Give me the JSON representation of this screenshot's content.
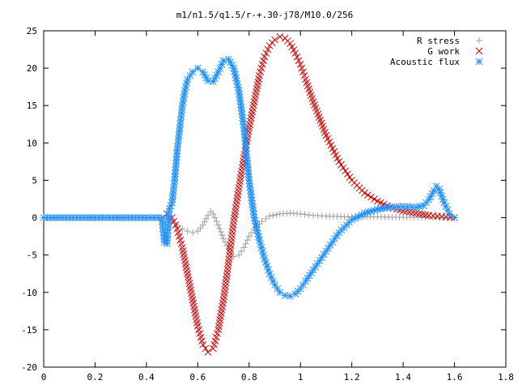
{
  "chart_data": {
    "type": "scatter",
    "title": "m1/n1.5/q1.5/r-+.30-j78/M10.0/256",
    "xlabel": "",
    "ylabel": "",
    "xlim": [
      0,
      1.8
    ],
    "ylim": [
      -20,
      25
    ],
    "x_ticks": [
      "0",
      "0.2",
      "0.4",
      "0.6",
      "0.8",
      "1",
      "1.2",
      "1.4",
      "1.6",
      "1.8"
    ],
    "y_ticks": [
      "-20",
      "-15",
      "-10",
      "-5",
      "0",
      "5",
      "10",
      "15",
      "20",
      "25"
    ],
    "grid": false,
    "legend_position": "top-right",
    "series": [
      {
        "name": "R stress",
        "marker": "plus",
        "color": "#a0a0a0",
        "points": [
          [
            0,
            0
          ],
          [
            0.46,
            0
          ],
          [
            0.48,
            0
          ],
          [
            0.5,
            -0.5
          ],
          [
            0.52,
            -1.0
          ],
          [
            0.54,
            -1.5
          ],
          [
            0.56,
            -1.8
          ],
          [
            0.58,
            -2.0
          ],
          [
            0.6,
            -1.8
          ],
          [
            0.62,
            -1.0
          ],
          [
            0.64,
            0.3
          ],
          [
            0.65,
            0.8
          ],
          [
            0.66,
            0.5
          ],
          [
            0.68,
            -1.0
          ],
          [
            0.7,
            -2.8
          ],
          [
            0.72,
            -4.2
          ],
          [
            0.74,
            -5.2
          ],
          [
            0.76,
            -5.0
          ],
          [
            0.78,
            -4.0
          ],
          [
            0.8,
            -2.5
          ],
          [
            0.82,
            -1.5
          ],
          [
            0.85,
            -0.5
          ],
          [
            0.88,
            0.2
          ],
          [
            0.92,
            0.5
          ],
          [
            0.96,
            0.6
          ],
          [
            1.0,
            0.5
          ],
          [
            1.05,
            0.3
          ],
          [
            1.1,
            0.2
          ],
          [
            1.2,
            0.1
          ],
          [
            1.3,
            0.1
          ],
          [
            1.4,
            0.05
          ],
          [
            1.5,
            0.05
          ],
          [
            1.6,
            0
          ]
        ]
      },
      {
        "name": "G work",
        "marker": "cross",
        "color": "#cc0000",
        "points": [
          [
            0.48,
            0.5
          ],
          [
            0.5,
            0
          ],
          [
            0.52,
            -1.5
          ],
          [
            0.54,
            -4
          ],
          [
            0.56,
            -7.5
          ],
          [
            0.58,
            -11
          ],
          [
            0.6,
            -14.5
          ],
          [
            0.62,
            -17
          ],
          [
            0.64,
            -18
          ],
          [
            0.66,
            -17.5
          ],
          [
            0.68,
            -15
          ],
          [
            0.7,
            -11
          ],
          [
            0.72,
            -6
          ],
          [
            0.74,
            -0.5
          ],
          [
            0.76,
            4
          ],
          [
            0.78,
            8
          ],
          [
            0.8,
            12
          ],
          [
            0.82,
            15.5
          ],
          [
            0.84,
            19
          ],
          [
            0.86,
            21.5
          ],
          [
            0.88,
            23
          ],
          [
            0.9,
            23.8
          ],
          [
            0.92,
            24.2
          ],
          [
            0.94,
            24
          ],
          [
            0.96,
            23.3
          ],
          [
            0.98,
            22
          ],
          [
            1.0,
            20.5
          ],
          [
            1.02,
            18.5
          ],
          [
            1.05,
            15.5
          ],
          [
            1.1,
            11
          ],
          [
            1.15,
            7.5
          ],
          [
            1.2,
            5
          ],
          [
            1.25,
            3.3
          ],
          [
            1.3,
            2.2
          ],
          [
            1.35,
            1.4
          ],
          [
            1.4,
            0.9
          ],
          [
            1.45,
            0.6
          ],
          [
            1.5,
            0.3
          ],
          [
            1.55,
            0.15
          ],
          [
            1.6,
            0
          ]
        ]
      },
      {
        "name": "Acoustic flux",
        "marker": "star",
        "color": "#1e90ff",
        "points": [
          [
            0,
            0
          ],
          [
            0.1,
            0
          ],
          [
            0.2,
            0
          ],
          [
            0.3,
            0
          ],
          [
            0.4,
            0
          ],
          [
            0.46,
            0
          ],
          [
            0.47,
            -3.3
          ],
          [
            0.48,
            -3.5
          ],
          [
            0.49,
            1.2
          ],
          [
            0.5,
            2
          ],
          [
            0.51,
            5
          ],
          [
            0.52,
            9
          ],
          [
            0.53,
            12
          ],
          [
            0.54,
            15
          ],
          [
            0.55,
            17
          ],
          [
            0.56,
            18.5
          ],
          [
            0.58,
            19.5
          ],
          [
            0.6,
            20
          ],
          [
            0.62,
            19.5
          ],
          [
            0.64,
            18.3
          ],
          [
            0.66,
            18.2
          ],
          [
            0.68,
            19.5
          ],
          [
            0.7,
            21
          ],
          [
            0.72,
            21.2
          ],
          [
            0.74,
            20
          ],
          [
            0.76,
            17
          ],
          [
            0.78,
            12
          ],
          [
            0.8,
            5
          ],
          [
            0.82,
            0
          ],
          [
            0.84,
            -3
          ],
          [
            0.86,
            -5.5
          ],
          [
            0.88,
            -7.5
          ],
          [
            0.9,
            -9
          ],
          [
            0.92,
            -10
          ],
          [
            0.94,
            -10.4
          ],
          [
            0.96,
            -10.5
          ],
          [
            0.98,
            -10.2
          ],
          [
            1.0,
            -9.5
          ],
          [
            1.02,
            -8.5
          ],
          [
            1.05,
            -7
          ],
          [
            1.1,
            -4.5
          ],
          [
            1.15,
            -2
          ],
          [
            1.2,
            -0.3
          ],
          [
            1.25,
            0.6
          ],
          [
            1.3,
            1.1
          ],
          [
            1.35,
            1.4
          ],
          [
            1.4,
            1.5
          ],
          [
            1.45,
            1.4
          ],
          [
            1.48,
            1.6
          ],
          [
            1.5,
            2.4
          ],
          [
            1.52,
            3.6
          ],
          [
            1.53,
            4.2
          ],
          [
            1.54,
            3.8
          ],
          [
            1.56,
            2
          ],
          [
            1.58,
            0.5
          ],
          [
            1.6,
            0
          ]
        ]
      }
    ]
  }
}
